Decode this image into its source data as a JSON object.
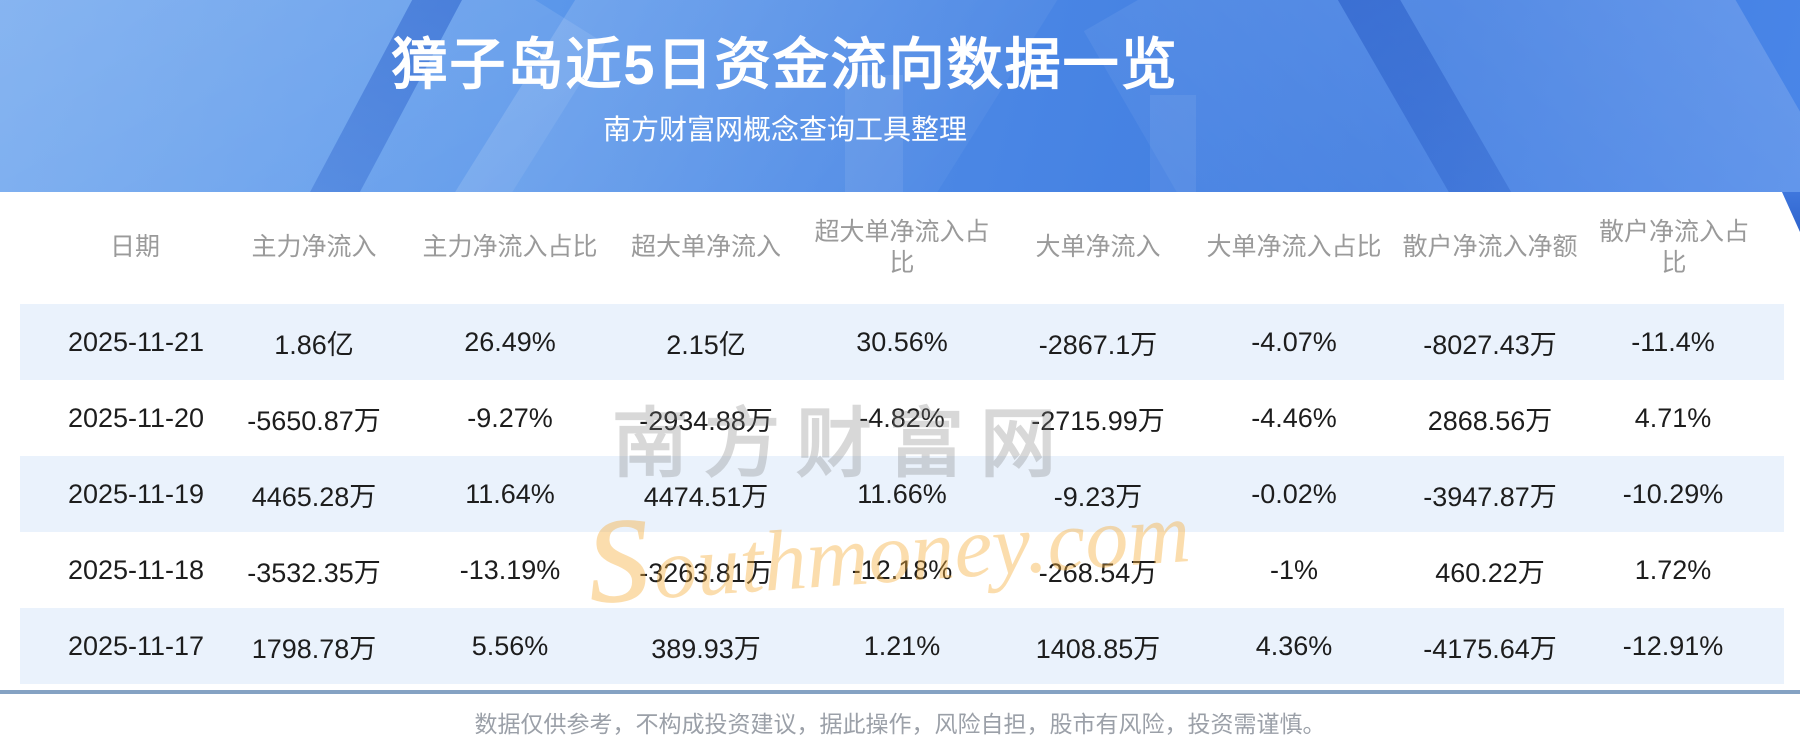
{
  "banner": {
    "title": "獐子岛近5日资金流向数据一览",
    "subtitle": "南方财富网概念查询工具整理"
  },
  "chart_data": {
    "type": "table",
    "title": "獐子岛近5日资金流向数据一览",
    "columns": [
      "日期",
      "主力净流入",
      "主力净流入占比",
      "超大单净流入",
      "超大单净流入占比",
      "大单净流入",
      "大单净流入占比",
      "散户净流入净额",
      "散户净流入占比"
    ],
    "rows": [
      [
        "2025-11-21",
        "1.86亿",
        "26.49%",
        "2.15亿",
        "30.56%",
        "-2867.1万",
        "-4.07%",
        "-8027.43万",
        "-11.4%"
      ],
      [
        "2025-11-20",
        "-5650.87万",
        "-9.27%",
        "-2934.88万",
        "-4.82%",
        "-2715.99万",
        "-4.46%",
        "2868.56万",
        "4.71%"
      ],
      [
        "2025-11-19",
        "4465.28万",
        "11.64%",
        "4474.51万",
        "11.66%",
        "-9.23万",
        "-0.02%",
        "-3947.87万",
        "-10.29%"
      ],
      [
        "2025-11-18",
        "-3532.35万",
        "-13.19%",
        "-3263.81万",
        "-12.18%",
        "-268.54万",
        "-1%",
        "460.22万",
        "1.72%"
      ],
      [
        "2025-11-17",
        "1798.78万",
        "5.56%",
        "389.93万",
        "1.21%",
        "1408.85万",
        "4.36%",
        "-4175.64万",
        "-12.91%"
      ]
    ],
    "row_stripe_on": true,
    "legend_position": "none"
  },
  "watermark": {
    "text_cn": "南方财富网",
    "text_en": "southmoney.com"
  },
  "footer": {
    "disclaimer": "数据仅供参考，不构成投资建议，据此操作，风险自担，股市有风险，投资需谨慎。"
  },
  "colors": {
    "banner_blue": "#3E7BE0",
    "banner_light_blue": "#6FA6EE",
    "row_stripe": "#EAF2FC",
    "divider": "#85A2C3",
    "header_text": "#9A9A9A",
    "cell_text": "#1D1D1D",
    "watermark_orange": "#F6AD3C",
    "watermark_gray": "#7D7D7D"
  }
}
